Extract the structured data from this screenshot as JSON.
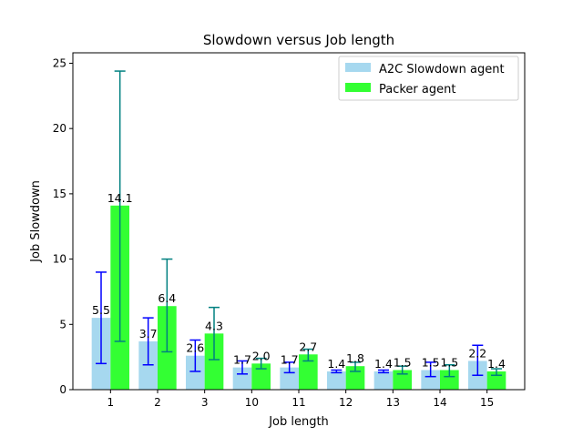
{
  "chart_data": {
    "type": "bar",
    "title": "Slowdown versus Job length",
    "xlabel": "Job length",
    "ylabel": "Job Slowdown",
    "categories": [
      "1",
      "2",
      "3",
      "10",
      "11",
      "12",
      "13",
      "14",
      "15"
    ],
    "ylim": [
      0,
      25.8
    ],
    "yticks": [
      0,
      5,
      10,
      15,
      20,
      25
    ],
    "grid": false,
    "legend_position": "top-right",
    "series": [
      {
        "name": "A2C Slowdown agent",
        "color": "#a6d8ef",
        "error_color": "#0000ff",
        "values": [
          5.5,
          3.7,
          2.6,
          1.7,
          1.7,
          1.4,
          1.4,
          1.5,
          2.2
        ],
        "labels": [
          "5.5",
          "3.7",
          "2.6",
          "1.7",
          "1.7",
          "1.4",
          "1.4",
          "1.5",
          "2.2"
        ],
        "error_low": [
          2.0,
          1.9,
          1.4,
          1.2,
          1.3,
          1.3,
          1.3,
          1.0,
          1.1
        ],
        "error_high": [
          9.0,
          5.5,
          3.8,
          2.2,
          2.1,
          1.5,
          1.5,
          2.1,
          3.4
        ]
      },
      {
        "name": "Packer agent",
        "color": "#33ff33",
        "error_color": "#008080",
        "values": [
          14.1,
          6.4,
          4.3,
          2.0,
          2.7,
          1.8,
          1.5,
          1.5,
          1.4
        ],
        "labels": [
          "14.1",
          "6.4",
          "4.3",
          "2.0",
          "2.7",
          "1.8",
          "1.5",
          "1.5",
          "1.4"
        ],
        "error_low": [
          3.7,
          2.9,
          2.3,
          1.6,
          2.2,
          1.4,
          1.2,
          1.0,
          1.1
        ],
        "error_high": [
          24.4,
          10.0,
          6.3,
          2.4,
          3.1,
          2.1,
          1.8,
          1.9,
          1.6
        ]
      }
    ]
  }
}
